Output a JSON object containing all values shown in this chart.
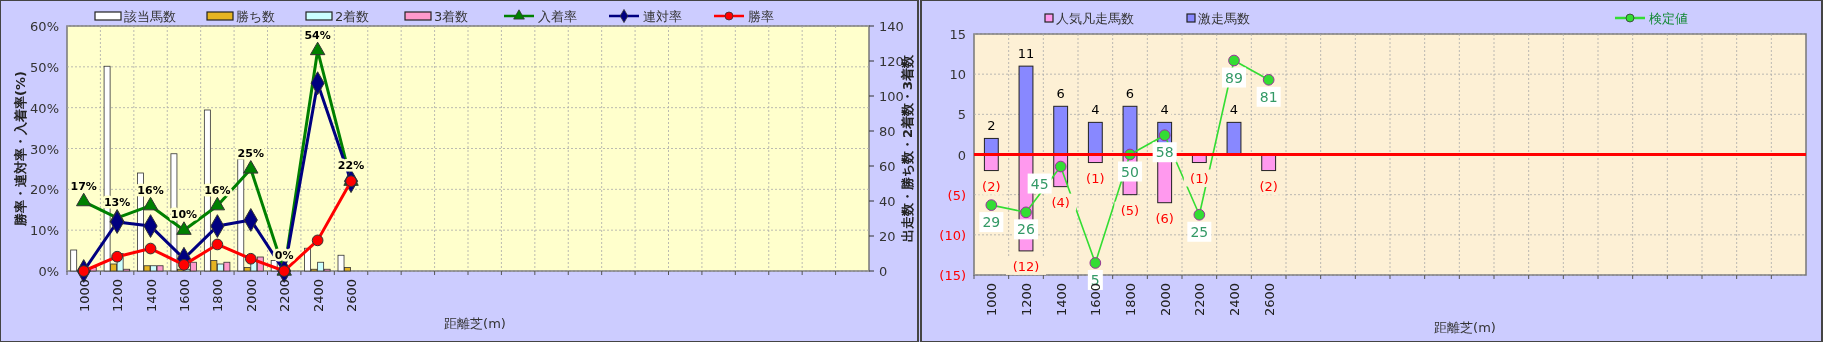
{
  "chart_data": [
    {
      "type": "bar",
      "categories": [
        "1000",
        "1200",
        "1400",
        "1600",
        "1800",
        "2000",
        "2200",
        "2400",
        "2600",
        null,
        null,
        null,
        null,
        null,
        null,
        null,
        null,
        null,
        null,
        null,
        null,
        null,
        null,
        null
      ],
      "xlabel": "距離芝(m)",
      "ylabel": "勝率・連対率・入着率(%)",
      "y2label": "出走数・勝ち数・2着数・3着数",
      "ylim": [
        0,
        60
      ],
      "yticks": [
        {
          "value": 0,
          "label": "0%"
        },
        {
          "value": 10,
          "label": "10%"
        },
        {
          "value": 20,
          "label": "20%"
        },
        {
          "value": 30,
          "label": "30%"
        },
        {
          "value": 40,
          "label": "40%"
        },
        {
          "value": 50,
          "label": "50%"
        },
        {
          "value": 60,
          "label": "60%"
        }
      ],
      "y2lim": [
        0,
        140
      ],
      "y2ticks": [
        0,
        20,
        40,
        60,
        80,
        100,
        120,
        140
      ],
      "grid": true,
      "legend": "top",
      "series": [
        {
          "name": "該当馬数",
          "type": "bar",
          "axis": "y2",
          "color": "#ffffff",
          "values": [
            12,
            117,
            56,
            67,
            92,
            64,
            6,
            13,
            9,
            null,
            null,
            null,
            null,
            null,
            null,
            null,
            null,
            null,
            null,
            null,
            null,
            null,
            null,
            null
          ]
        },
        {
          "name": "勝ち数",
          "type": "bar",
          "axis": "y2",
          "color": "#e6b422",
          "values": [
            0,
            4,
            3,
            1,
            6,
            2,
            0,
            1,
            2,
            null,
            null,
            null,
            null,
            null,
            null,
            null,
            null,
            null,
            null,
            null,
            null,
            null,
            null,
            null
          ]
        },
        {
          "name": "2着数",
          "type": "bar",
          "axis": "y2",
          "color": "#ccffff",
          "values": [
            0,
            10,
            3,
            1,
            4,
            6,
            0,
            5,
            0,
            null,
            null,
            null,
            null,
            null,
            null,
            null,
            null,
            null,
            null,
            null,
            null,
            null,
            null,
            null
          ]
        },
        {
          "name": "3着数",
          "type": "bar",
          "axis": "y2",
          "color": "#ff99cc",
          "values": [
            2,
            1,
            3,
            5,
            5,
            8,
            0,
            1,
            0,
            null,
            null,
            null,
            null,
            null,
            null,
            null,
            null,
            null,
            null,
            null,
            null,
            null,
            null,
            null
          ]
        },
        {
          "name": "入着率",
          "type": "line",
          "color": "#008000",
          "marker": "triangle",
          "values": [
            17,
            13,
            16,
            10,
            16,
            25,
            0,
            54,
            22,
            null,
            null,
            null,
            null,
            null,
            null,
            null,
            null,
            null,
            null,
            null,
            null,
            null,
            null,
            null
          ],
          "value_labels": [
            "17%",
            "13%",
            "16%",
            "10%",
            "16%",
            "25%",
            "0%",
            "54%",
            "22%",
            null,
            null,
            null,
            null,
            null,
            null,
            null,
            null,
            null,
            null,
            null,
            null,
            null,
            null,
            null
          ]
        },
        {
          "name": "連対率",
          "type": "line",
          "color": "#000080",
          "marker": "diamond",
          "values": [
            0,
            12,
            11,
            3,
            11,
            12.5,
            0,
            46,
            22,
            null,
            null,
            null,
            null,
            null,
            null,
            null,
            null,
            null,
            null,
            null,
            null,
            null,
            null,
            null
          ]
        },
        {
          "name": "勝率",
          "type": "line",
          "color": "#ff0000",
          "marker": "circle",
          "values": [
            0,
            3.5,
            5.5,
            1.5,
            6.5,
            3,
            0,
            7.5,
            22,
            null,
            null,
            null,
            null,
            null,
            null,
            null,
            null,
            null,
            null,
            null,
            null,
            null,
            null,
            null
          ]
        }
      ]
    },
    {
      "type": "bar",
      "stacked": true,
      "categories": [
        "1000",
        "1200",
        "1400",
        "1600",
        "1800",
        "2000",
        "2200",
        "2400",
        "2600",
        null,
        null,
        null,
        null,
        null,
        null,
        null,
        null,
        null,
        null,
        null,
        null,
        null,
        null,
        null
      ],
      "xlabel": "距離芝(m)",
      "ylim": [
        -15,
        15
      ],
      "yticks": [
        {
          "value": -15,
          "label": "(15)"
        },
        {
          "value": -10,
          "label": "(10)"
        },
        {
          "value": -5,
          "label": "(5)"
        },
        0,
        5,
        10,
        15
      ],
      "y2lim": [
        0,
        100
      ],
      "grid": true,
      "legend": "top",
      "ref_lines": [
        {
          "axis": "y",
          "value": 0,
          "color": "#ff0000"
        }
      ],
      "series": [
        {
          "name": "人気凡走馬数",
          "color": "#ff99ee",
          "values": [
            -2,
            -12,
            -4,
            -1,
            -5,
            -6,
            -1,
            null,
            -2,
            null,
            null,
            null,
            null,
            null,
            null,
            null,
            null,
            null,
            null,
            null,
            null,
            null,
            null,
            null
          ],
          "value_labels": [
            "(2)",
            "(12)",
            "(4)",
            "(1)",
            "(5)",
            "(6)",
            "(1)",
            null,
            "(2)",
            null,
            null,
            null,
            null,
            null,
            null,
            null,
            null,
            null,
            null,
            null,
            null,
            null,
            null,
            null
          ]
        },
        {
          "name": "激走馬数",
          "color": "#8888ff",
          "values": [
            2,
            11,
            6,
            4,
            6,
            4,
            null,
            4,
            null,
            null,
            null,
            null,
            null,
            null,
            null,
            null,
            null,
            null,
            null,
            null,
            null,
            null,
            null,
            null
          ],
          "value_labels": [
            "2",
            "11",
            "6",
            "4",
            "6",
            "4",
            null,
            "4",
            null,
            null,
            null,
            null,
            null,
            null,
            null,
            null,
            null,
            null,
            null,
            null,
            null,
            null,
            null,
            null
          ]
        },
        {
          "name": "検定値",
          "type": "line",
          "axis": "y2",
          "color": "#33dd33",
          "marker": "circle",
          "values": [
            29,
            26,
            45,
            5,
            50,
            58,
            25,
            89,
            81,
            null,
            null,
            null,
            null,
            null,
            null,
            null,
            null,
            null,
            null,
            null,
            null,
            null,
            null,
            null
          ],
          "value_labels": [
            "29",
            "26",
            "45",
            "5",
            "50",
            "58",
            "25",
            "89",
            "81",
            null,
            null,
            null,
            null,
            null,
            null,
            null,
            null,
            null,
            null,
            null,
            null,
            null,
            null,
            null
          ]
        }
      ]
    }
  ]
}
